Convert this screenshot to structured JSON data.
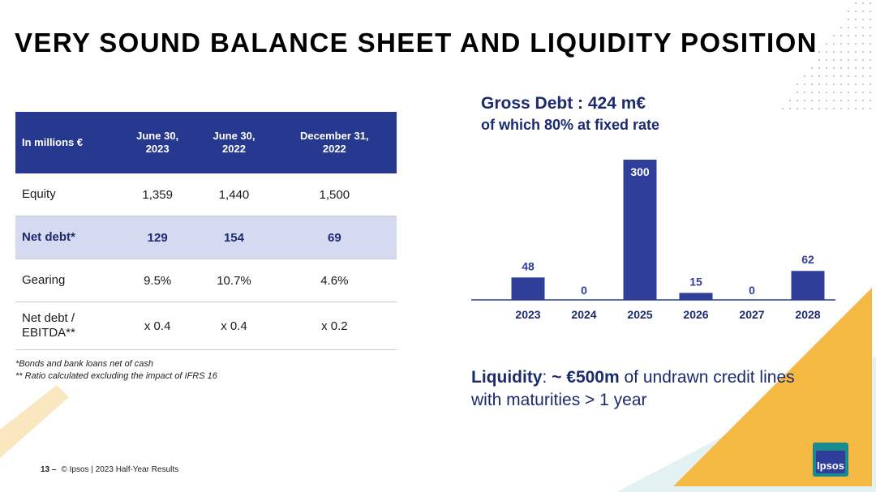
{
  "title": "VERY SOUND BALANCE SHEET AND LIQUIDITY POSITION",
  "table": {
    "header": [
      "In millions €",
      [
        "June 30,",
        "2023"
      ],
      [
        "June 30,",
        "2022"
      ],
      [
        "December 31,",
        "2022"
      ]
    ],
    "rows": [
      {
        "label": [
          "Equity"
        ],
        "values": [
          "1,359",
          "1,440",
          "1,500"
        ],
        "highlight": false
      },
      {
        "label": [
          "Net debt*"
        ],
        "values": [
          "129",
          "154",
          "69"
        ],
        "highlight": true
      },
      {
        "label": [
          "Gearing"
        ],
        "values": [
          "9.5%",
          "10.7%",
          "4.6%"
        ],
        "highlight": false
      },
      {
        "label": [
          "Net debt /",
          "EBITDA**"
        ],
        "values": [
          "x 0.4",
          "x 0.4",
          "x 0.2"
        ],
        "highlight": false
      }
    ]
  },
  "notes": [
    "*Bonds and bank loans net of cash",
    "** Ratio calculated excluding the impact of IFRS 16"
  ],
  "gross_debt": {
    "line1": "Gross Debt : 424 m€",
    "line2": "of which 80% at fixed rate"
  },
  "chart_data": {
    "type": "bar",
    "title": "Gross Debt : 424 m€",
    "subtitle": "of which 80% at fixed rate",
    "categories": [
      "2023",
      "2024",
      "2025",
      "2026",
      "2027",
      "2028"
    ],
    "values": [
      48,
      0,
      300,
      15,
      0,
      62
    ],
    "ylim": [
      0,
      300
    ],
    "grid": false,
    "bar_color": "#2f3f99",
    "xlabel": "",
    "ylabel": ""
  },
  "liquidity": {
    "label": "Liquidity",
    "sep": ": ",
    "amount": "~ €500m",
    "rest": " of undrawn credit lines with maturities > 1 year"
  },
  "footer": {
    "page": "13 –",
    "text": "© Ipsos | 2023 Half-Year Results"
  },
  "logo": {
    "text": "Ipsos"
  },
  "colors": {
    "brand_blue": "#27398f",
    "highlight_row": "#d5daf1",
    "accent_yellow": "#f4b942",
    "accent_teal": "#d6ecee"
  }
}
